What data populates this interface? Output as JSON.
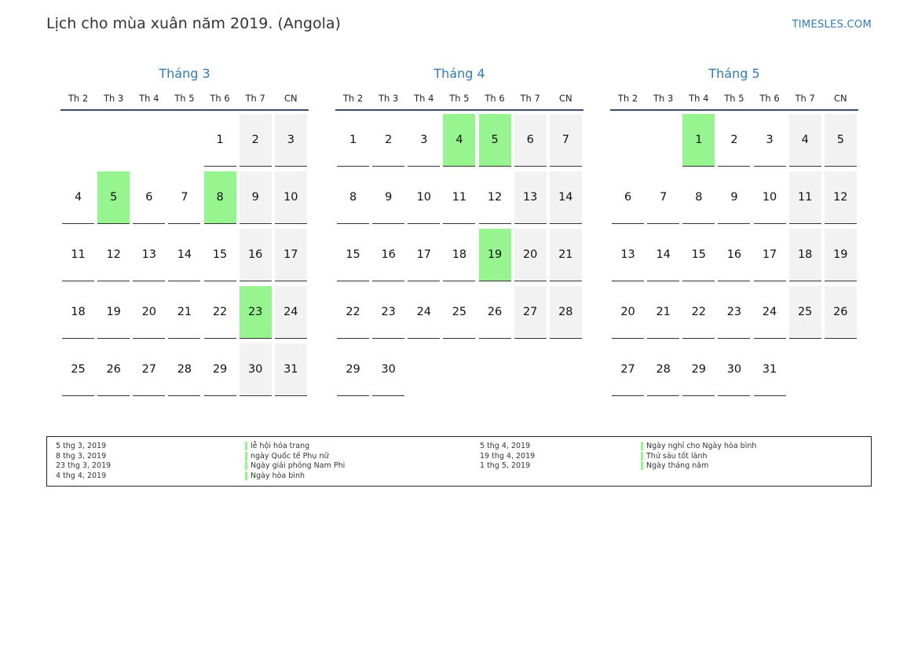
{
  "header": {
    "title": "Lịch cho mùa xuân năm 2019. (Angola)",
    "brand": "TIMESLES.COM"
  },
  "weekdays": [
    "Th 2",
    "Th 3",
    "Th 4",
    "Th 5",
    "Th 6",
    "Th 7",
    "CN"
  ],
  "colors": {
    "holiday": "#96f58e",
    "weekend": "#f2f2f2",
    "accent": "#2e7bbf"
  },
  "months": [
    {
      "name": "Tháng 3",
      "offset": 4,
      "days": 31,
      "holidays": [
        5,
        8,
        23
      ]
    },
    {
      "name": "Tháng 4",
      "offset": 0,
      "days": 30,
      "holidays": [
        4,
        5,
        19
      ]
    },
    {
      "name": "Tháng 5",
      "offset": 2,
      "days": 31,
      "holidays": [
        1
      ]
    }
  ],
  "legend": {
    "left": [
      {
        "date": "5 thg 3, 2019",
        "name": "lễ hội hóa trang"
      },
      {
        "date": "8 thg 3, 2019",
        "name": "ngày Quốc tế Phụ nữ"
      },
      {
        "date": "23 thg 3, 2019",
        "name": "Ngày giải phóng Nam Phi"
      },
      {
        "date": "4 thg 4, 2019",
        "name": "Ngày hòa bình"
      }
    ],
    "right": [
      {
        "date": "5 thg 4, 2019",
        "name": "Ngày nghỉ cho Ngày hòa bình"
      },
      {
        "date": "19 thg 4, 2019",
        "name": "Thứ sáu tốt lành"
      },
      {
        "date": "1 thg 5, 2019",
        "name": "Ngày tháng năm"
      }
    ]
  }
}
